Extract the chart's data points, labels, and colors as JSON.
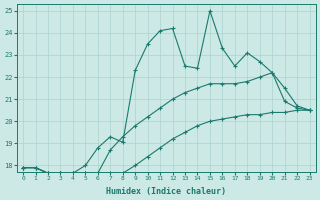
{
  "xlabel": "Humidex (Indice chaleur)",
  "xlim": [
    -0.5,
    23.5
  ],
  "ylim": [
    17.7,
    25.3
  ],
  "yticks": [
    18,
    19,
    20,
    21,
    22,
    23,
    24,
    25
  ],
  "xticks": [
    0,
    1,
    2,
    3,
    4,
    5,
    6,
    7,
    8,
    9,
    10,
    11,
    12,
    13,
    14,
    15,
    16,
    17,
    18,
    19,
    20,
    21,
    22,
    23
  ],
  "bg_color": "#cce9e5",
  "line_color": "#1a7a6e",
  "grid_color": "#afd3cf",
  "line1_x": [
    0,
    1,
    2,
    3,
    4,
    5,
    6,
    7,
    8,
    9,
    10,
    11,
    12,
    13,
    14,
    15,
    16,
    17,
    18,
    19,
    20,
    21,
    22,
    23
  ],
  "line1_y": [
    17.9,
    17.9,
    17.65,
    17.65,
    17.65,
    18.0,
    18.8,
    19.3,
    19.05,
    22.3,
    23.5,
    24.1,
    24.2,
    22.5,
    22.4,
    25.0,
    23.3,
    22.5,
    23.1,
    22.7,
    22.2,
    20.9,
    20.6,
    20.5
  ],
  "line2_x": [
    0,
    1,
    2,
    3,
    4,
    5,
    6,
    7,
    8,
    9,
    10,
    11,
    12,
    13,
    14,
    15,
    16,
    17,
    18,
    19,
    20,
    21,
    22,
    23
  ],
  "line2_y": [
    17.9,
    17.9,
    17.65,
    17.65,
    17.65,
    17.65,
    17.65,
    18.7,
    19.3,
    19.8,
    20.2,
    20.6,
    21.0,
    21.3,
    21.5,
    21.7,
    21.7,
    21.7,
    21.8,
    22.0,
    22.2,
    21.5,
    20.7,
    20.5
  ],
  "line3_x": [
    0,
    1,
    2,
    3,
    4,
    5,
    6,
    7,
    8,
    9,
    10,
    11,
    12,
    13,
    14,
    15,
    16,
    17,
    18,
    19,
    20,
    21,
    22,
    23
  ],
  "line3_y": [
    17.9,
    17.9,
    17.65,
    17.65,
    17.65,
    17.65,
    17.65,
    17.65,
    17.65,
    18.0,
    18.4,
    18.8,
    19.2,
    19.5,
    19.8,
    20.0,
    20.1,
    20.2,
    20.3,
    20.3,
    20.4,
    20.4,
    20.5,
    20.5
  ]
}
